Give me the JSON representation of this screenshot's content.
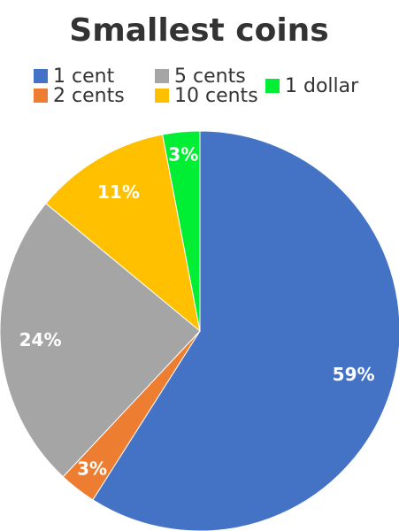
{
  "chart_data": {
    "type": "pie",
    "title": "Smallest coins",
    "categories": [
      "1 cent",
      "2 cents",
      "5 cents",
      "10 cents",
      "1 dollar"
    ],
    "values": [
      59,
      3,
      24,
      11,
      3
    ],
    "value_labels": [
      "59%",
      "3%",
      "24%",
      "11%",
      "3%"
    ],
    "colors": [
      "#4472c4",
      "#ed7d31",
      "#a5a5a5",
      "#ffc000",
      "#00ee33"
    ]
  }
}
